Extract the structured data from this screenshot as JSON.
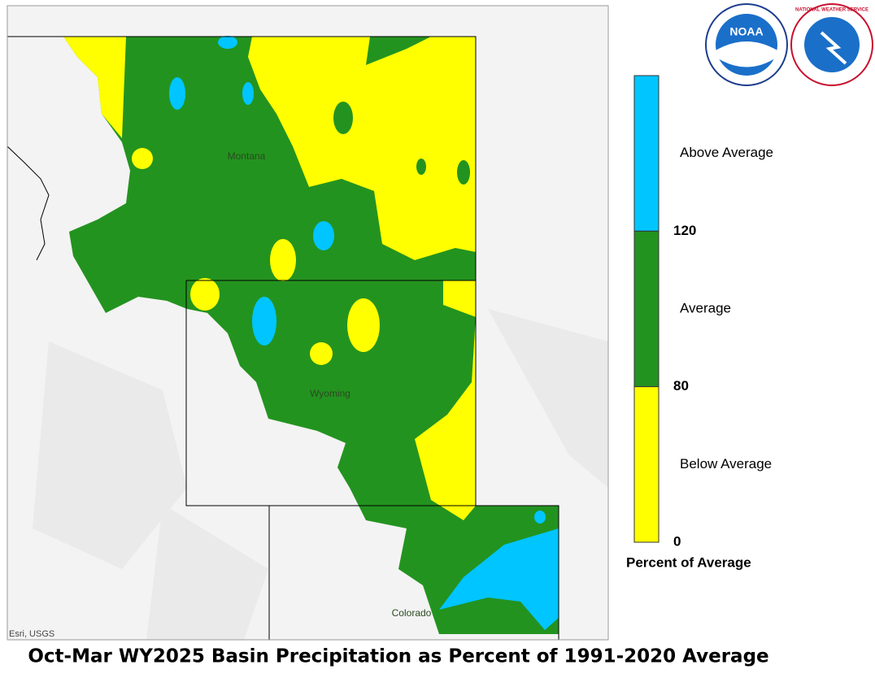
{
  "map": {
    "states": [
      "Montana",
      "Wyoming",
      "Colorado"
    ],
    "attribution": "Esri, USGS",
    "title": "Oct-Mar WY2025 Basin Precipitation as Percent of 1991-2020 Average"
  },
  "logos": {
    "noaa": "NOAA",
    "nws": "NATIONAL WEATHER SERVICE"
  },
  "legend": {
    "title": "Percent of Average",
    "classes": [
      {
        "label": "Above Average",
        "color": "#00c5ff"
      },
      {
        "label": "Average",
        "color": "#23931f"
      },
      {
        "label": "Below Average",
        "color": "#ffff00"
      }
    ],
    "ticks": [
      120,
      80,
      0
    ]
  }
}
